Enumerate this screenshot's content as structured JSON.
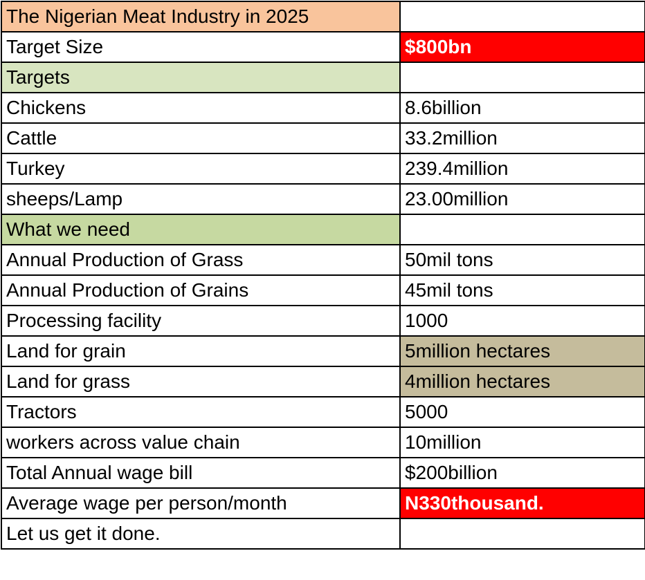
{
  "title": "The Nigerian Meat Industry in 2025",
  "colors": {
    "header": "#f9c49c",
    "section": "#d8e5c0",
    "need": "#c6d9a1",
    "highlight_red": "#ff0000",
    "highlight_tan": "#c5bc9c"
  },
  "rows": [
    {
      "label": "The Nigerian Meat Industry in 2025",
      "value": ""
    },
    {
      "label": "Target Size",
      "value": "$800bn"
    },
    {
      "label": "Targets",
      "value": ""
    },
    {
      "label": "Chickens",
      "value": "8.6billion"
    },
    {
      "label": "Cattle",
      "value": "33.2million"
    },
    {
      "label": "Turkey",
      "value": "239.4million"
    },
    {
      "label": "sheeps/Lamp",
      "value": "23.00million"
    },
    {
      "label": "What we need",
      "value": ""
    },
    {
      "label": "Annual Production of Grass",
      "value": "50mil tons"
    },
    {
      "label": "Annual Production of Grains",
      "value": "45mil tons"
    },
    {
      "label": "Processing facility",
      "value": "1000"
    },
    {
      "label": "Land for grain",
      "value": "5million hectares"
    },
    {
      "label": "Land for grass",
      "value": "4million hectares"
    },
    {
      "label": "Tractors",
      "value": "5000"
    },
    {
      "label": "workers across value chain",
      "value": "10million"
    },
    {
      "label": "Total Annual wage bill",
      "value": "$200billion"
    },
    {
      "label": "Average wage per person/month",
      "value": "N330thousand."
    },
    {
      "label": "Let us get it done.",
      "value": ""
    }
  ]
}
